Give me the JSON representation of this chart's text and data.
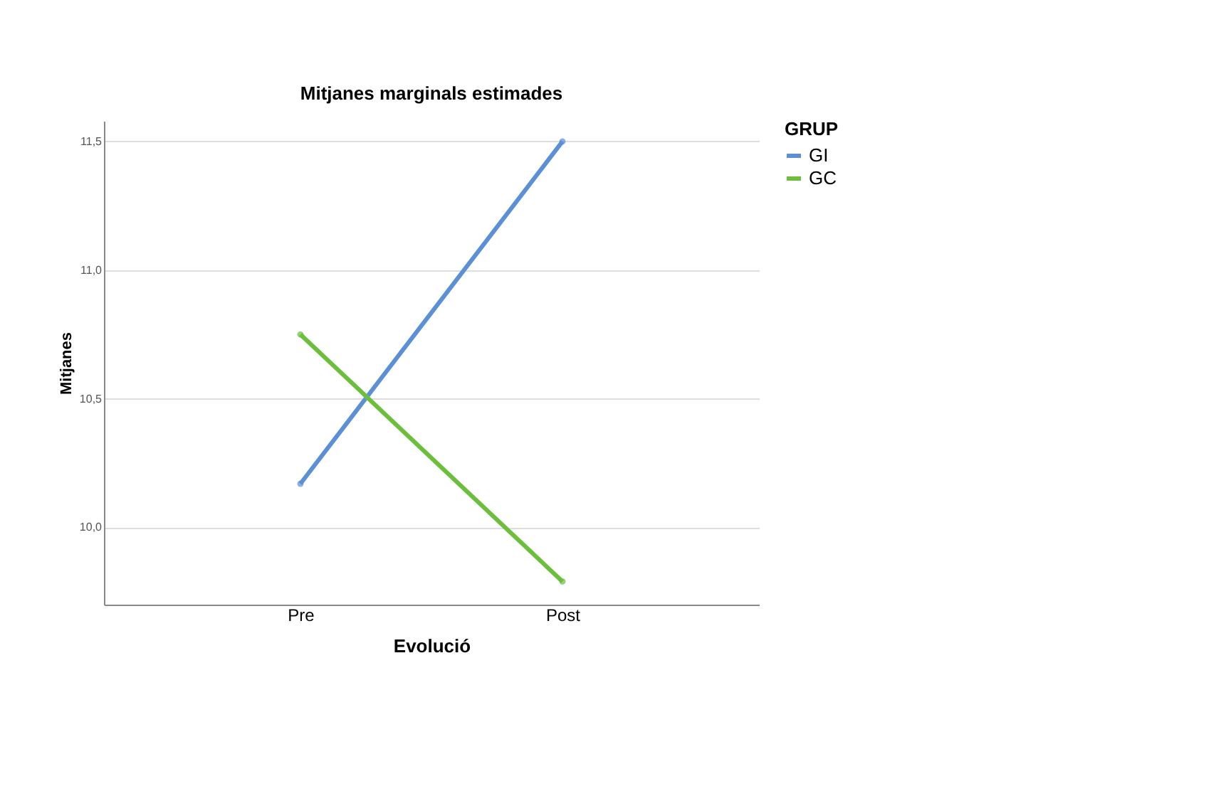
{
  "chart_data": {
    "type": "line",
    "title": "Mitjanes marginals estimades",
    "xlabel": "Evolució",
    "ylabel": "Mitjanes",
    "legend_title": "GRUP",
    "categories": [
      "Pre",
      "Post"
    ],
    "series": [
      {
        "name": "GI",
        "color": "#5b8fd6",
        "values": [
          10.17,
          11.5
        ]
      },
      {
        "name": "GC",
        "color": "#6cbf3c",
        "values": [
          10.75,
          9.79
        ]
      }
    ],
    "ylim": [
      9.7,
      11.58
    ],
    "yticks": [
      {
        "value": 10.0,
        "label": "10,0"
      },
      {
        "value": 10.5,
        "label": "10,5"
      },
      {
        "value": 11.0,
        "label": "11,0"
      },
      {
        "value": 11.5,
        "label": "11,5"
      }
    ],
    "grid": "y",
    "legend": "top right",
    "marker": "circle",
    "line_style": "solid"
  }
}
